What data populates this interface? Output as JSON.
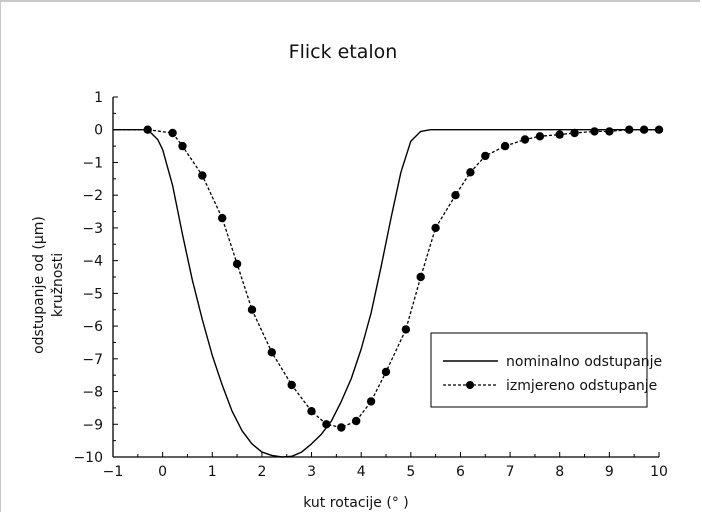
{
  "chart_data": {
    "type": "line",
    "title": "Flick etalon",
    "xlabel": "kut rotacije  (° )",
    "ylabel": [
      "odstupanje od  (µm)",
      "kružnosti"
    ],
    "xlim": [
      -1,
      10
    ],
    "ylim": [
      -10,
      1
    ],
    "xticks": [
      -1,
      0,
      1,
      2,
      3,
      4,
      5,
      6,
      7,
      8,
      9,
      10
    ],
    "yticks": [
      1,
      0,
      -1,
      -2,
      -3,
      -4,
      -5,
      -6,
      -7,
      -8,
      -9,
      -10
    ],
    "legend_position": "lower-right",
    "series": [
      {
        "name": "nominalno odstupanje",
        "style": "solid",
        "color": "#000000",
        "x": [
          -1,
          -0.3,
          -0.1,
          0,
          0.2,
          0.4,
          0.6,
          0.8,
          1.0,
          1.2,
          1.4,
          1.6,
          1.8,
          2.0,
          2.2,
          2.4,
          2.6,
          2.8,
          3.0,
          3.2,
          3.4,
          3.6,
          3.8,
          4.0,
          4.2,
          4.4,
          4.6,
          4.8,
          5.0,
          5.2,
          5.4,
          6,
          7,
          8,
          9,
          10
        ],
        "y": [
          0,
          0,
          -0.3,
          -0.6,
          -1.7,
          -3.2,
          -4.6,
          -5.8,
          -6.9,
          -7.8,
          -8.6,
          -9.2,
          -9.6,
          -9.85,
          -9.95,
          -10.0,
          -9.98,
          -9.85,
          -9.6,
          -9.3,
          -8.9,
          -8.3,
          -7.6,
          -6.7,
          -5.6,
          -4.2,
          -2.7,
          -1.3,
          -0.35,
          -0.05,
          0,
          0,
          0,
          0,
          0,
          0
        ]
      },
      {
        "name": "izmjereno odstupanje",
        "style": "dashed-markers",
        "color": "#000000",
        "x": [
          -1,
          -0.3,
          0.2,
          0.4,
          0.8,
          1.2,
          1.5,
          1.8,
          2.2,
          2.6,
          3.0,
          3.3,
          3.6,
          3.9,
          4.2,
          4.5,
          4.9,
          5.2,
          5.5,
          5.9,
          6.2,
          6.5,
          6.9,
          7.3,
          7.6,
          8.0,
          8.3,
          8.7,
          9.0,
          9.4,
          9.7,
          10.0
        ],
        "y": [
          0,
          0,
          -0.1,
          -0.5,
          -1.4,
          -2.7,
          -4.1,
          -5.5,
          -6.8,
          -7.8,
          -8.6,
          -9.0,
          -9.1,
          -8.9,
          -8.3,
          -7.4,
          -6.1,
          -4.5,
          -3.0,
          -2.0,
          -1.3,
          -0.8,
          -0.5,
          -0.3,
          -0.2,
          -0.15,
          -0.1,
          -0.05,
          -0.05,
          0,
          0,
          0
        ],
        "markers": [
          -0.3,
          0.2,
          0.4,
          0.8,
          1.2,
          1.5,
          1.8,
          2.2,
          2.6,
          3.0,
          3.3,
          3.6,
          3.9,
          4.2,
          4.5,
          4.9,
          5.2,
          5.5,
          5.9,
          6.2,
          6.5,
          6.9,
          7.3,
          7.6,
          8.0,
          8.3,
          8.7,
          9.0,
          9.4,
          9.7,
          10.0
        ]
      }
    ]
  }
}
